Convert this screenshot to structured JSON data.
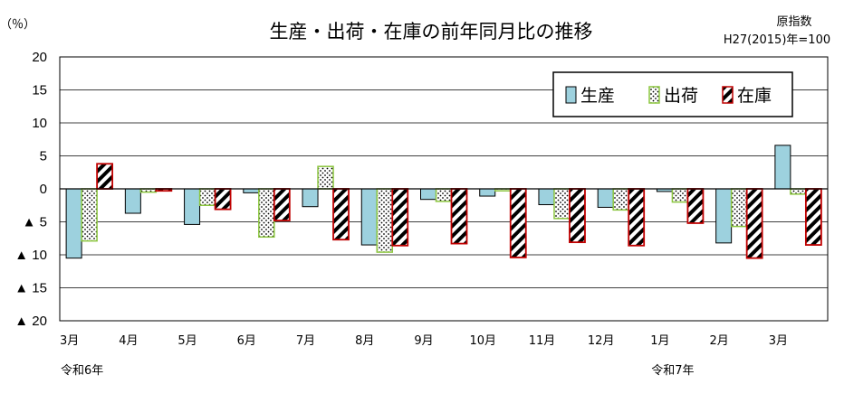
{
  "chart_data": {
    "type": "bar",
    "title": "生産・出荷・在庫の前年同月比の推移",
    "unit_label": "（％）",
    "index_note": [
      "原指数",
      "H27(2015)年=100"
    ],
    "ylim": [
      -20,
      20
    ],
    "yticks": [
      {
        "value": 20,
        "label": "20"
      },
      {
        "value": 15,
        "label": "15"
      },
      {
        "value": 10,
        "label": "10"
      },
      {
        "value": 5,
        "label": "5"
      },
      {
        "value": 0,
        "label": "0"
      },
      {
        "value": -5,
        "label": "▲ 5"
      },
      {
        "value": -10,
        "label": "▲ 10"
      },
      {
        "value": -15,
        "label": "▲ 15"
      },
      {
        "value": -20,
        "label": "▲ 20"
      }
    ],
    "categories": [
      "3月",
      "4月",
      "5月",
      "6月",
      "7月",
      "8月",
      "9月",
      "10月",
      "11月",
      "12月",
      "1月",
      "2月",
      "3月"
    ],
    "era_labels": [
      {
        "category_index": 0,
        "text": "令和6年"
      },
      {
        "category_index": 10,
        "text": "令和7年"
      }
    ],
    "series": [
      {
        "name": "生産",
        "color": "#9dd1de",
        "values": [
          -10.5,
          -3.7,
          -5.4,
          -0.6,
          -2.7,
          -8.5,
          -1.6,
          -1.1,
          -2.4,
          -2.8,
          -0.4,
          -8.2,
          6.6
        ]
      },
      {
        "name": "出荷",
        "color": "#8cc63f",
        "values": [
          -7.9,
          -0.5,
          -2.5,
          -7.3,
          3.4,
          -9.6,
          -1.9,
          -0.3,
          -4.5,
          -3.2,
          -2.0,
          -5.7,
          -0.8
        ]
      },
      {
        "name": "在庫",
        "color": "#c00000",
        "values": [
          3.8,
          -0.3,
          -3.1,
          -4.8,
          -7.7,
          -8.6,
          -8.3,
          -10.4,
          -8.1,
          -8.6,
          -5.2,
          -10.5,
          -8.5
        ]
      }
    ],
    "legend_position": "top-right",
    "grid": true
  }
}
